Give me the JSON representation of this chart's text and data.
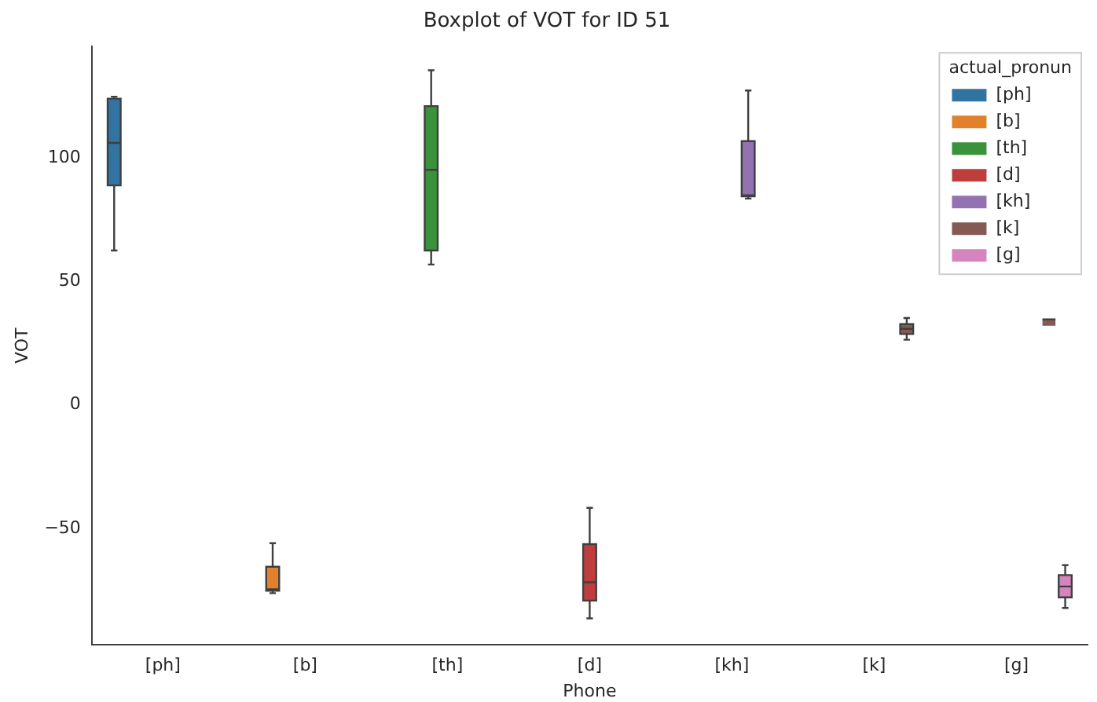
{
  "chart_data": {
    "type": "box",
    "title": "Boxplot of VOT for ID 51",
    "xlabel": "Phone",
    "ylabel": "VOT",
    "legend_title": "actual_pronun",
    "legend": "top right",
    "grid": false,
    "categories": [
      "[ph]",
      "[b]",
      "[th]",
      "[d]",
      "[kh]",
      "[k]",
      "[g]"
    ],
    "ylim": [
      -97,
      145
    ],
    "yticks": [
      -50,
      0,
      50,
      100
    ],
    "series": [
      {
        "name": "[ph]",
        "color": "#3274a1",
        "boxes": [
          {
            "low": 62.5,
            "q1": 88.8,
            "median": 106,
            "q3": 123.9,
            "high": 124.7
          },
          null,
          null,
          null,
          null,
          null,
          null
        ]
      },
      {
        "name": "[b]",
        "color": "#e1812c",
        "boxes": [
          null,
          {
            "low": -76.1,
            "q1": -75.1,
            "median": -74.5,
            "q3": -65.4,
            "high": -55.9
          },
          null,
          null,
          null,
          null,
          null
        ]
      },
      {
        "name": "[th]",
        "color": "#3a923a",
        "boxes": [
          null,
          null,
          {
            "low": 56.8,
            "q1": 62.5,
            "median": 95.1,
            "q3": 120.9,
            "high": 135.4
          },
          null,
          null,
          null,
          null
        ]
      },
      {
        "name": "[d]",
        "color": "#c03d3e",
        "boxes": [
          null,
          null,
          null,
          {
            "low": -86.3,
            "q1": -79.1,
            "median": -71.7,
            "q3": -56.3,
            "high": -41.6
          },
          null,
          null,
          null
        ]
      },
      {
        "name": "[kh]",
        "color": "#9372b2",
        "boxes": [
          null,
          null,
          null,
          null,
          {
            "low": 83.5,
            "q1": 84.4,
            "median": 84.8,
            "q3": 106.7,
            "high": 127.2
          },
          null,
          null
        ]
      },
      {
        "name": "[k]",
        "color": "#845b53",
        "boxes": [
          null,
          null,
          null,
          null,
          null,
          {
            "low": 26.4,
            "q1": 28.7,
            "median": 30.8,
            "q3": 32.7,
            "high": 35.2
          },
          {
            "low": 34.6,
            "q1": 34.6,
            "median": 34.6,
            "q3": 34.6,
            "high": 34.6
          }
        ]
      },
      {
        "name": "[g]",
        "color": "#d684bd",
        "boxes": [
          null,
          null,
          null,
          null,
          null,
          null,
          {
            "low": -82.1,
            "q1": -77.8,
            "median": -73.4,
            "q3": -68.8,
            "high": -64.8
          }
        ]
      }
    ]
  }
}
